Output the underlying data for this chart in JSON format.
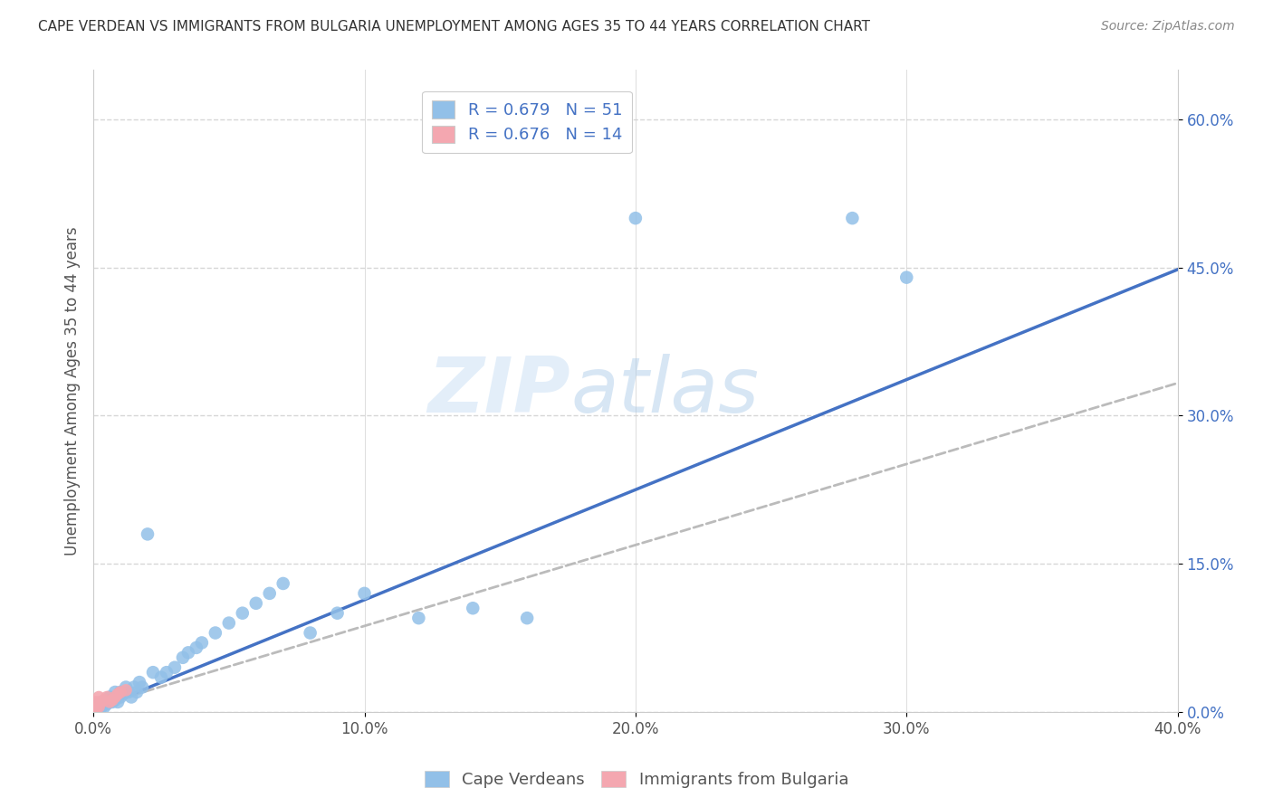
{
  "title": "CAPE VERDEAN VS IMMIGRANTS FROM BULGARIA UNEMPLOYMENT AMONG AGES 35 TO 44 YEARS CORRELATION CHART",
  "source": "Source: ZipAtlas.com",
  "ylabel": "Unemployment Among Ages 35 to 44 years",
  "xlim": [
    0.0,
    0.4
  ],
  "ylim": [
    0.0,
    0.65
  ],
  "xticks": [
    0.0,
    0.1,
    0.2,
    0.3,
    0.4
  ],
  "xtick_labels": [
    "0.0%",
    "10.0%",
    "20.0%",
    "30.0%",
    "40.0%"
  ],
  "yticks": [
    0.0,
    0.15,
    0.3,
    0.45,
    0.6
  ],
  "ytick_labels": [
    "0.0%",
    "15.0%",
    "30.0%",
    "45.0%",
    "60.0%"
  ],
  "watermark_zip": "ZIP",
  "watermark_atlas": "atlas",
  "legend_R1": "R = 0.679",
  "legend_N1": "N = 51",
  "legend_R2": "R = 0.676",
  "legend_N2": "N = 14",
  "color_blue": "#92C0E8",
  "color_pink": "#F4A7B0",
  "color_blue_text": "#4472C4",
  "color_gray_dashed": "#BBBBBB",
  "regression_blue_slope": 1.115,
  "regression_blue_intercept": 0.002,
  "regression_gray_slope": 0.82,
  "regression_gray_intercept": 0.005,
  "blue_x": [
    0.001,
    0.001,
    0.002,
    0.002,
    0.003,
    0.003,
    0.004,
    0.004,
    0.005,
    0.005,
    0.006,
    0.006,
    0.007,
    0.007,
    0.008,
    0.008,
    0.009,
    0.01,
    0.01,
    0.011,
    0.012,
    0.013,
    0.014,
    0.015,
    0.016,
    0.017,
    0.018,
    0.02,
    0.022,
    0.025,
    0.027,
    0.03,
    0.033,
    0.035,
    0.038,
    0.04,
    0.045,
    0.05,
    0.055,
    0.06,
    0.065,
    0.07,
    0.08,
    0.09,
    0.1,
    0.12,
    0.14,
    0.16,
    0.2,
    0.28,
    0.3
  ],
  "blue_y": [
    0.0,
    0.005,
    0.003,
    0.008,
    0.005,
    0.01,
    0.005,
    0.01,
    0.008,
    0.012,
    0.01,
    0.015,
    0.01,
    0.012,
    0.012,
    0.02,
    0.01,
    0.015,
    0.02,
    0.018,
    0.025,
    0.02,
    0.015,
    0.025,
    0.02,
    0.03,
    0.025,
    0.18,
    0.04,
    0.035,
    0.04,
    0.045,
    0.055,
    0.06,
    0.065,
    0.07,
    0.08,
    0.09,
    0.1,
    0.11,
    0.12,
    0.13,
    0.08,
    0.1,
    0.12,
    0.095,
    0.105,
    0.095,
    0.5,
    0.5,
    0.44
  ],
  "pink_x": [
    0.0,
    0.001,
    0.001,
    0.002,
    0.002,
    0.003,
    0.004,
    0.005,
    0.006,
    0.007,
    0.008,
    0.009,
    0.01,
    0.012
  ],
  "pink_y": [
    0.0,
    0.005,
    0.01,
    0.005,
    0.015,
    0.01,
    0.012,
    0.015,
    0.01,
    0.012,
    0.015,
    0.018,
    0.02,
    0.022
  ]
}
